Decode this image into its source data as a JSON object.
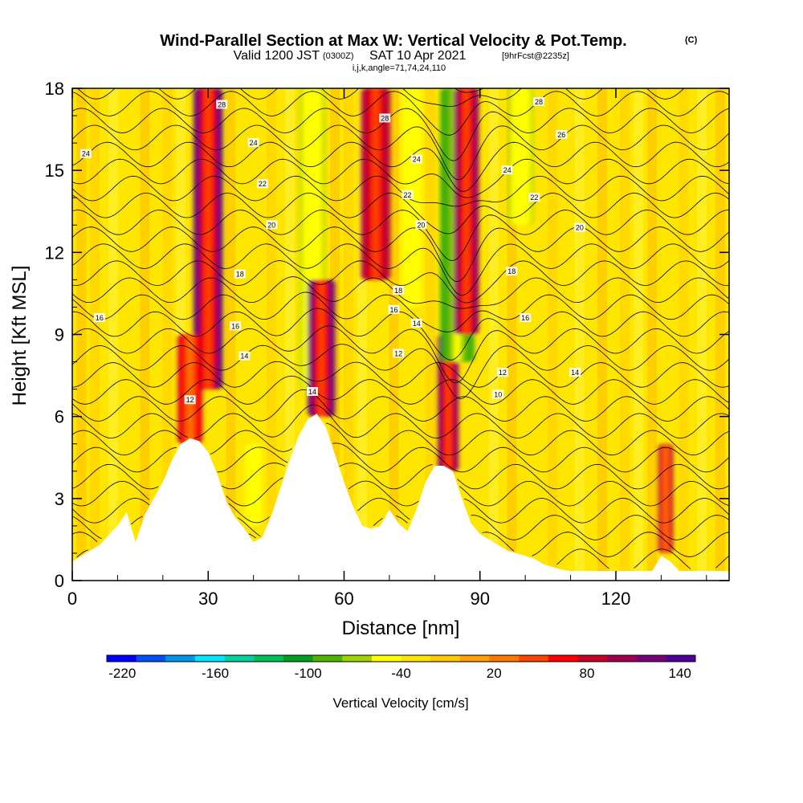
{
  "title": {
    "main": "Wind-Parallel Section at Max W: Vertical Velocity & Pot.Temp.",
    "copyright": "(C)",
    "valid_prefix": "Valid 1200 JST",
    "valid_utc": "(0300Z)",
    "valid_date": "SAT 10 Apr 2021",
    "forecast": "[9hrFcst@2235z]",
    "indices": "i,j,k,angle=71,74,24,110"
  },
  "chart_data": {
    "type": "heatmap",
    "xlabel": "Distance [nm]",
    "ylabel": "Height [Kft MSL]",
    "xlim": [
      0,
      145
    ],
    "ylim": [
      0,
      18
    ],
    "x_ticks": [
      "0",
      "30",
      "60",
      "90",
      "120"
    ],
    "y_ticks": [
      "0",
      "3",
      "6",
      "9",
      "12",
      "15",
      "18"
    ],
    "terrain": {
      "x": [
        0,
        2,
        6,
        10,
        12,
        14,
        16,
        18,
        20,
        22,
        24,
        26,
        28,
        30,
        32,
        34,
        36,
        38,
        40,
        42,
        44,
        46,
        48,
        50,
        52,
        54,
        56,
        58,
        60,
        62,
        64,
        66,
        68,
        70,
        72,
        74,
        76,
        78,
        80,
        82,
        84,
        86,
        88,
        90,
        92,
        94,
        96,
        98,
        100,
        102,
        104,
        106,
        108,
        110,
        120,
        128,
        130,
        132,
        134,
        140,
        145
      ],
      "height": [
        0.7,
        0.9,
        1.3,
        2.0,
        2.5,
        1.4,
        2.4,
        3.0,
        3.6,
        4.4,
        5.0,
        5.2,
        5.1,
        4.7,
        3.9,
        2.9,
        2.3,
        1.9,
        1.4,
        1.6,
        2.4,
        3.4,
        4.4,
        5.3,
        5.9,
        6.1,
        5.6,
        4.6,
        3.6,
        2.7,
        2.0,
        1.9,
        2.0,
        2.6,
        2.1,
        1.8,
        2.6,
        3.6,
        4.2,
        4.2,
        4.0,
        3.0,
        2.1,
        1.7,
        1.5,
        1.3,
        1.1,
        1.0,
        0.9,
        0.8,
        0.6,
        0.5,
        0.4,
        0.35,
        0.35,
        0.35,
        0.9,
        0.7,
        0.35,
        0.35,
        0.35
      ]
    },
    "vertical_velocity_features": [
      {
        "x": 30,
        "y0": 7,
        "y1": 18,
        "w": 135,
        "width": 1.4
      },
      {
        "x": 26,
        "y0": 5,
        "y1": 9,
        "w": 80,
        "width": 1.2
      },
      {
        "x": 40,
        "y0": 2,
        "y1": 5,
        "w": -55,
        "width": 0.8
      },
      {
        "x": 53,
        "y0": 7,
        "y1": 18,
        "w": -60,
        "width": 1.2
      },
      {
        "x": 55,
        "y0": 6,
        "y1": 11,
        "w": 140,
        "width": 1.3
      },
      {
        "x": 67,
        "y0": 11,
        "y1": 18,
        "w": 110,
        "width": 1.4
      },
      {
        "x": 75,
        "y0": 10,
        "y1": 18,
        "w": -55,
        "width": 0.9
      },
      {
        "x": 83,
        "y0": 4,
        "y1": 9,
        "w": 120,
        "width": 1.0
      },
      {
        "x": 85,
        "y0": 8,
        "y1": 18,
        "w": -110,
        "width": 1.6
      },
      {
        "x": 87,
        "y0": 9,
        "y1": 18,
        "w": 130,
        "width": 1.2
      },
      {
        "x": 99,
        "y0": 13,
        "y1": 18,
        "w": -60,
        "width": 1.2
      },
      {
        "x": 131,
        "y0": 1,
        "y1": 5,
        "w": 95,
        "width": 0.7
      }
    ],
    "contour_labels": [
      {
        "text": "28",
        "x": 33,
        "y": 17.4
      },
      {
        "text": "24",
        "x": 3,
        "y": 15.6
      },
      {
        "text": "24",
        "x": 40,
        "y": 16.0
      },
      {
        "text": "22",
        "x": 42,
        "y": 14.5
      },
      {
        "text": "20",
        "x": 44,
        "y": 13.0
      },
      {
        "text": "18",
        "x": 37,
        "y": 11.2
      },
      {
        "text": "16",
        "x": 6,
        "y": 9.6
      },
      {
        "text": "16",
        "x": 36,
        "y": 9.3
      },
      {
        "text": "14",
        "x": 38,
        "y": 8.2
      },
      {
        "text": "12",
        "x": 26,
        "y": 6.6
      },
      {
        "text": "14",
        "x": 53,
        "y": 6.9
      },
      {
        "text": "28",
        "x": 69,
        "y": 16.9
      },
      {
        "text": "24",
        "x": 76,
        "y": 15.4
      },
      {
        "text": "22",
        "x": 74,
        "y": 14.1
      },
      {
        "text": "20",
        "x": 77,
        "y": 13.0
      },
      {
        "text": "18",
        "x": 72,
        "y": 10.6
      },
      {
        "text": "16",
        "x": 71,
        "y": 9.9
      },
      {
        "text": "14",
        "x": 76,
        "y": 9.4
      },
      {
        "text": "12",
        "x": 72,
        "y": 8.3
      },
      {
        "text": "28",
        "x": 103,
        "y": 17.5
      },
      {
        "text": "26",
        "x": 108,
        "y": 16.3
      },
      {
        "text": "24",
        "x": 96,
        "y": 15.0
      },
      {
        "text": "22",
        "x": 102,
        "y": 14.0
      },
      {
        "text": "20",
        "x": 112,
        "y": 12.9
      },
      {
        "text": "18",
        "x": 97,
        "y": 11.3
      },
      {
        "text": "16",
        "x": 100,
        "y": 9.6
      },
      {
        "text": "12",
        "x": 95,
        "y": 7.6
      },
      {
        "text": "14",
        "x": 111,
        "y": 7.6
      },
      {
        "text": "10",
        "x": 94,
        "y": 6.8
      }
    ],
    "colorbar": {
      "label": "Vertical Velocity [cm/s]",
      "min": -230,
      "max": 150,
      "tick_labels": [
        "-220",
        "-160",
        "-100",
        "-40",
        "20",
        "80",
        "140"
      ],
      "colors": [
        "#0000ff",
        "#0050ff",
        "#0096f0",
        "#00e6ff",
        "#00d2a0",
        "#00c05a",
        "#00a01e",
        "#50b400",
        "#a0d200",
        "#ffff00",
        "#ffe600",
        "#ffc800",
        "#ffa000",
        "#ff7800",
        "#ff4600",
        "#ff0000",
        "#c80028",
        "#a00050",
        "#780078",
        "#500096"
      ]
    }
  }
}
